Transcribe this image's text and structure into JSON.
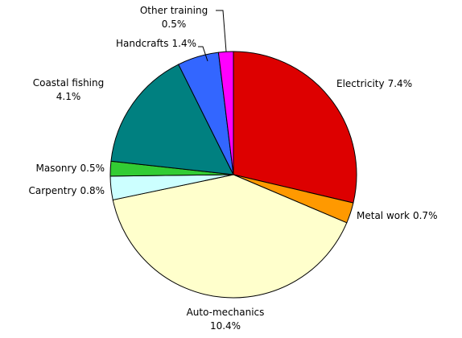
{
  "chart_data": {
    "type": "pie",
    "categories": [
      "Electricity",
      "Metal work",
      "Auto-mechanics",
      "Carpentry",
      "Masonry",
      "Coastal fishing",
      "Handcrafts",
      "Other training"
    ],
    "values": [
      7.4,
      0.7,
      10.4,
      0.8,
      0.5,
      4.1,
      1.4,
      0.5
    ],
    "value_labels": [
      "7.4%",
      "0.7%",
      "10.4%",
      "0.8%",
      "0.5%",
      "4.1%",
      "1.4%",
      "0.5%"
    ],
    "colors": [
      "#dd0000",
      "#ff9900",
      "#ffffcc",
      "#ccffff",
      "#33cc33",
      "#008080",
      "#3366ff",
      "#ff00ff"
    ]
  }
}
